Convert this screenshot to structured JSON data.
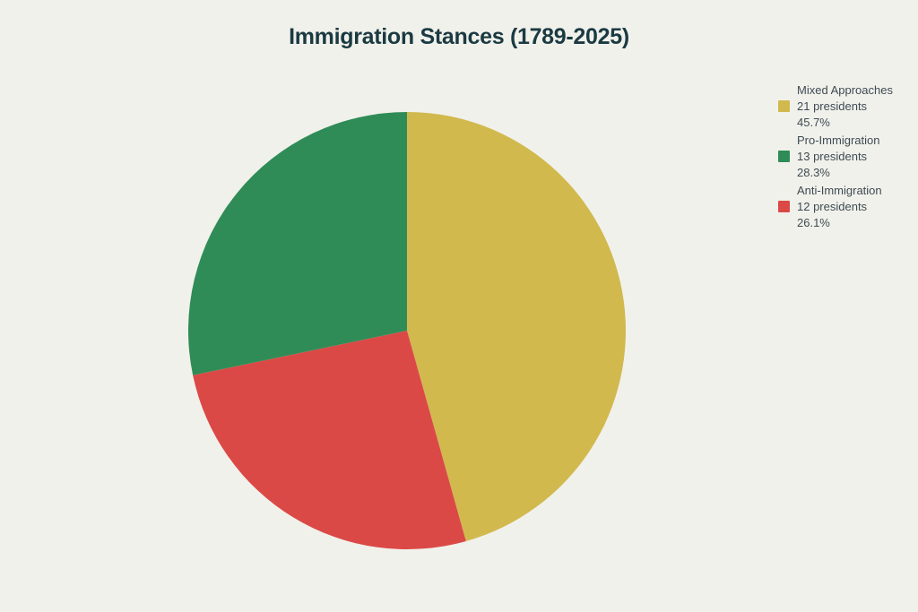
{
  "title": "Immigration Stances (1789-2025)",
  "colors": {
    "background": "#F1F1EB",
    "title_text": "#1B3A42",
    "legend_text": "#3E4B54"
  },
  "chart_data": {
    "type": "pie",
    "title": "Immigration Stances (1789-2025)",
    "legend_position": "right",
    "start_angle_deg": 0,
    "direction": "clockwise",
    "clockwise_order": [
      0,
      2,
      1
    ],
    "total_percent": 100.1,
    "slices": [
      {
        "slug": "mixed-approaches",
        "label": "Mixed Approaches",
        "count": 21,
        "count_label": "21 presidents",
        "percent": 45.7,
        "percent_label": "45.7%",
        "color": "#D1B94E"
      },
      {
        "slug": "pro-immigration",
        "label": "Pro-Immigration",
        "count": 13,
        "count_label": "13 presidents",
        "percent": 28.3,
        "percent_label": "28.3%",
        "color": "#2F8C57"
      },
      {
        "slug": "anti-immigration",
        "label": "Anti-Immigration",
        "count": 12,
        "count_label": "12 presidents",
        "percent": 26.1,
        "percent_label": "26.1%",
        "color": "#DB4946"
      }
    ]
  }
}
